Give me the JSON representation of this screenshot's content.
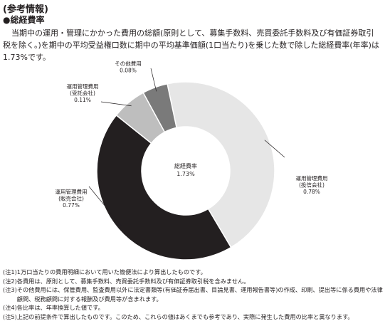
{
  "heading": "(参考情報)",
  "subheading": "●総経費率",
  "intro": "当期中の運用・管理にかかった費用の総額(原則として、募集手数料、売買委託手数料及び有価証券取引税を除く。)を期中の平均受益権口数に期中の平均基準価額(1口当たり)を乗じた数で除した総経費率(年率)は1.73%です。",
  "chart_data": {
    "type": "donut",
    "center_label": "総経費率",
    "center_value": "1.73%",
    "slices": [
      {
        "label_line1": "運用管理費用",
        "label_line2": "(投信会社)",
        "value": 0.78,
        "value_label": "0.78%",
        "color": "#e6e6e6"
      },
      {
        "label_line1": "運用管理費用",
        "label_line2": "(販売会社)",
        "value": 0.77,
        "value_label": "0.77%",
        "color": "#231f20"
      },
      {
        "label_line1": "運用管理費用",
        "label_line2": "(受託会社)",
        "value": 0.11,
        "value_label": "0.11%",
        "color": "#bebebe"
      },
      {
        "label_line1": "その他費用",
        "label_line2": "",
        "value": 0.08,
        "value_label": "0.08%",
        "color": "#7a7a7a"
      }
    ]
  },
  "notes": [
    {
      "id": "(注1)",
      "text": "1万口当たりの費用明細において用いた簡便法により算出したものです。"
    },
    {
      "id": "(注2)",
      "text": "各費用は、原則として、募集手数料、売買委託手数料及び有価証券取引税を含みません。"
    },
    {
      "id": "(注3)",
      "text": "その他費用には、保管費用、監査費用以外に法定書類等(有価証券届出書、目論見書、運用報告書等)の作成、印刷、提出等に係る費用や法律顧問、税務顧問に対する報酬及び費用等が含まれます。"
    },
    {
      "id": "(注4)",
      "text": "各比率は、年率換算した値です。"
    },
    {
      "id": "(注5)",
      "text": "上記の前提条件で算出したものです。このため、これらの値はあくまでも参考であり、実際に発生した費用の比率と異なります。"
    }
  ]
}
